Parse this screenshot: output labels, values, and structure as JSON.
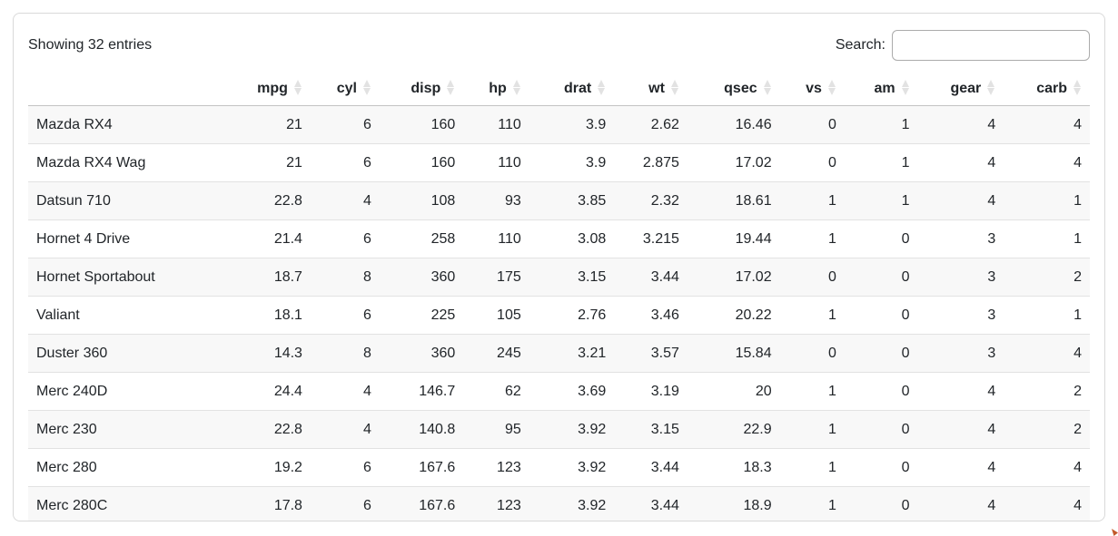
{
  "toolbar": {
    "info": "Showing 32 entries",
    "search_label": "Search:",
    "search_value": ""
  },
  "table": {
    "row_names_header": "",
    "columns": [
      "mpg",
      "cyl",
      "disp",
      "hp",
      "drat",
      "wt",
      "qsec",
      "vs",
      "am",
      "gear",
      "carb"
    ],
    "rows": [
      {
        "name": "Mazda RX4",
        "values": [
          "21",
          "6",
          "160",
          "110",
          "3.9",
          "2.62",
          "16.46",
          "0",
          "1",
          "4",
          "4"
        ]
      },
      {
        "name": "Mazda RX4 Wag",
        "values": [
          "21",
          "6",
          "160",
          "110",
          "3.9",
          "2.875",
          "17.02",
          "0",
          "1",
          "4",
          "4"
        ]
      },
      {
        "name": "Datsun 710",
        "values": [
          "22.8",
          "4",
          "108",
          "93",
          "3.85",
          "2.32",
          "18.61",
          "1",
          "1",
          "4",
          "1"
        ]
      },
      {
        "name": "Hornet 4 Drive",
        "values": [
          "21.4",
          "6",
          "258",
          "110",
          "3.08",
          "3.215",
          "19.44",
          "1",
          "0",
          "3",
          "1"
        ]
      },
      {
        "name": "Hornet Sportabout",
        "values": [
          "18.7",
          "8",
          "360",
          "175",
          "3.15",
          "3.44",
          "17.02",
          "0",
          "0",
          "3",
          "2"
        ]
      },
      {
        "name": "Valiant",
        "values": [
          "18.1",
          "6",
          "225",
          "105",
          "2.76",
          "3.46",
          "20.22",
          "1",
          "0",
          "3",
          "1"
        ]
      },
      {
        "name": "Duster 360",
        "values": [
          "14.3",
          "8",
          "360",
          "245",
          "3.21",
          "3.57",
          "15.84",
          "0",
          "0",
          "3",
          "4"
        ]
      },
      {
        "name": "Merc 240D",
        "values": [
          "24.4",
          "4",
          "146.7",
          "62",
          "3.69",
          "3.19",
          "20",
          "1",
          "0",
          "4",
          "2"
        ]
      },
      {
        "name": "Merc 230",
        "values": [
          "22.8",
          "4",
          "140.8",
          "95",
          "3.92",
          "3.15",
          "22.9",
          "1",
          "0",
          "4",
          "2"
        ]
      },
      {
        "name": "Merc 280",
        "values": [
          "19.2",
          "6",
          "167.6",
          "123",
          "3.92",
          "3.44",
          "18.3",
          "1",
          "0",
          "4",
          "4"
        ]
      },
      {
        "name": "Merc 280C",
        "values": [
          "17.8",
          "6",
          "167.6",
          "123",
          "3.92",
          "3.44",
          "18.9",
          "1",
          "0",
          "4",
          "4"
        ]
      }
    ]
  },
  "icons": {
    "sort_icon": "diamond-up-down"
  },
  "colors": {
    "text": "#212529",
    "stripe": "#f8f8f8",
    "row_border": "#e2e2e2",
    "header_border": "#c3c3c3",
    "card_border": "#d9d9d9",
    "input_border": "#ababab",
    "sort_icon": "#e2e2e2"
  }
}
